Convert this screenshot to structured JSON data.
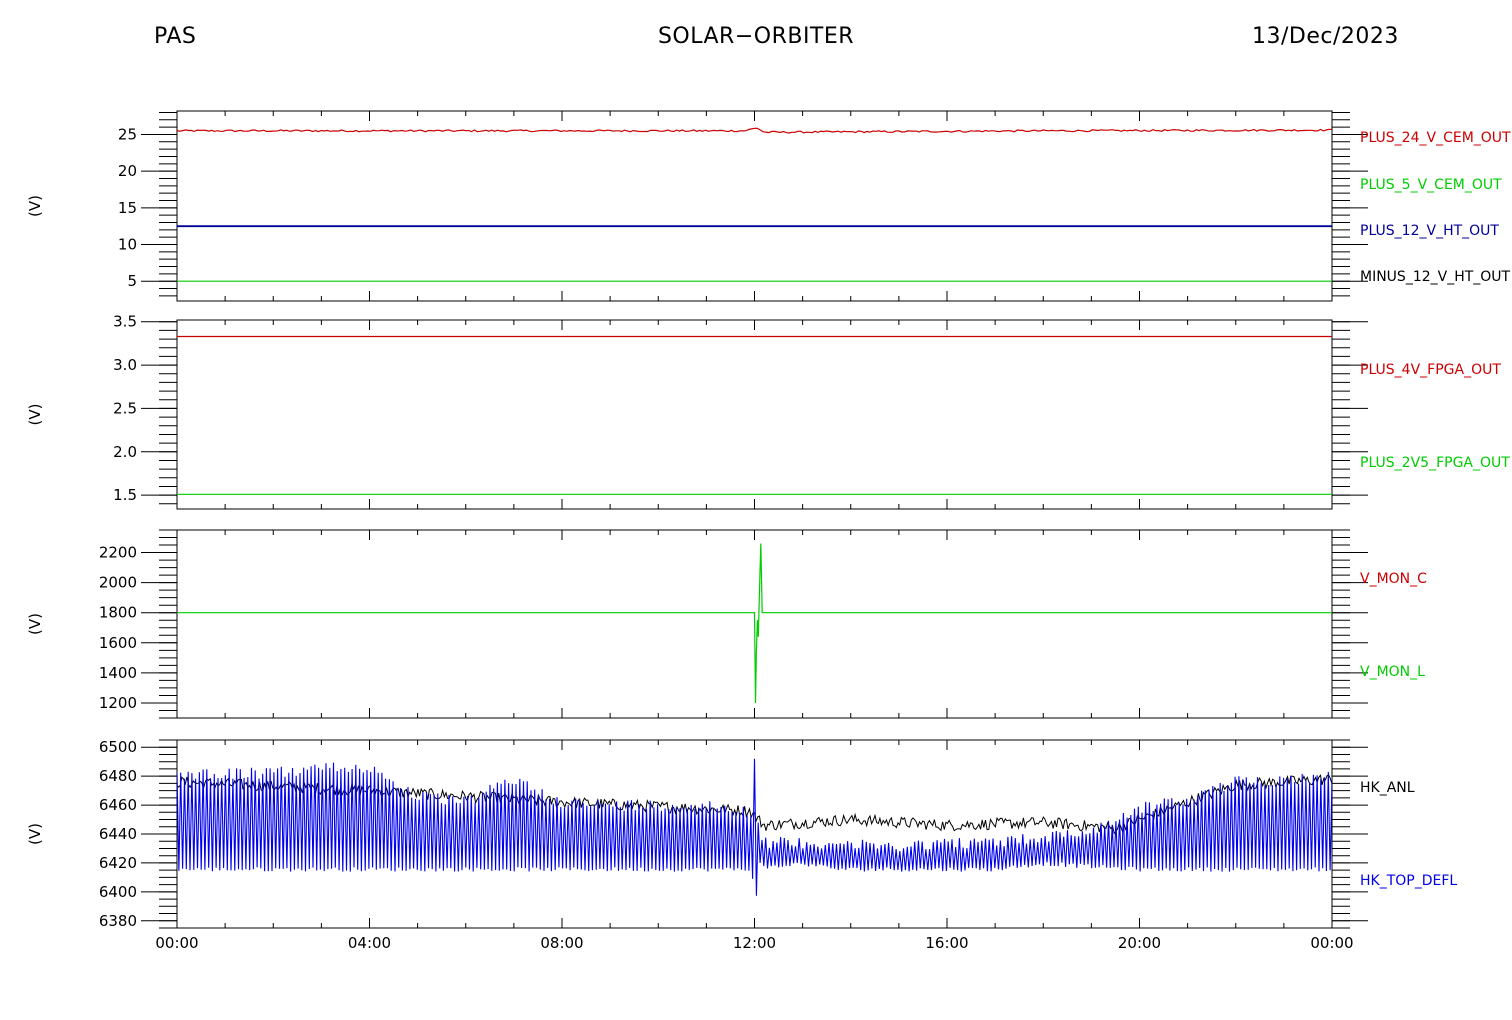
{
  "header": {
    "left": "PAS",
    "center": "SOLAR−ORBITER",
    "right": "13/Dec/2023"
  },
  "chart_data": [
    {
      "type": "line",
      "ylabel": "(V)",
      "ylim": [
        2.3,
        28.2
      ],
      "yticks": [
        "5",
        "10",
        "15",
        "20",
        "25"
      ],
      "ytick_values": [
        5,
        10,
        15,
        20,
        25
      ],
      "yminor": 1,
      "x_range_hours": [
        0,
        24
      ],
      "series": [
        {
          "name": "PLUS_24_V_CEM_OUT",
          "color": "#cc0000",
          "x_hours": [
            0,
            6,
            11.8,
            12.05,
            12.2,
            18,
            24
          ],
          "values": [
            25.5,
            25.5,
            25.5,
            25.9,
            25.3,
            25.5,
            25.6
          ]
        },
        {
          "name": "PLUS_5_V_CEM_OUT",
          "color": "#00cc00",
          "x_hours": [
            0,
            24
          ],
          "values": [
            5.0,
            5.0
          ]
        },
        {
          "name": "PLUS_12_V_HT_OUT",
          "color": "#000099",
          "x_hours": [
            0,
            24
          ],
          "values": [
            12.5,
            12.5
          ]
        },
        {
          "name": "MINUS_12_V_HT_OUT",
          "color": "#000000",
          "x_hours": [],
          "values": []
        }
      ],
      "legend_labels": [
        "PLUS_24_V_CEM_OUT",
        "PLUS_5_V_CEM_OUT",
        "PLUS_12_V_HT_OUT",
        "MINUS_12_V_HT_OUT"
      ]
    },
    {
      "type": "line",
      "ylabel": "(V)",
      "ylim": [
        1.34,
        3.52
      ],
      "yticks": [
        "1.5",
        "2.0",
        "2.5",
        "3.0",
        "3.5"
      ],
      "ytick_values": [
        1.5,
        2.0,
        2.5,
        3.0,
        3.5
      ],
      "yminor": 0.1,
      "x_range_hours": [
        0,
        24
      ],
      "series": [
        {
          "name": "PLUS_4V_FPGA_OUT",
          "color": "#cc0000",
          "x_hours": [
            0,
            24
          ],
          "values": [
            3.33,
            3.33
          ]
        },
        {
          "name": "PLUS_2V5_FPGA_OUT",
          "color": "#00cc00",
          "x_hours": [
            0,
            24
          ],
          "values": [
            1.51,
            1.51
          ]
        }
      ],
      "legend_labels": [
        "PLUS_4V_FPGA_OUT",
        "PLUS_2V5_FPGA_OUT"
      ]
    },
    {
      "type": "line",
      "ylabel": "(V)",
      "ylim": [
        1100,
        2350
      ],
      "yticks": [
        "1200",
        "1400",
        "1600",
        "1800",
        "2000",
        "2200"
      ],
      "ytick_values": [
        1200,
        1400,
        1600,
        1800,
        2000,
        2200
      ],
      "yminor": 50,
      "x_range_hours": [
        0,
        24
      ],
      "series": [
        {
          "name": "V_MON_C",
          "color": "#cc0000",
          "x_hours": [],
          "values": []
        },
        {
          "name": "V_MON_L",
          "color": "#00cc00",
          "x_hours": [
            0,
            12.0,
            12.02,
            12.04,
            12.06,
            12.08,
            12.1,
            12.13,
            12.16,
            12.2,
            24
          ],
          "values": [
            1800,
            1800,
            1200,
            1550,
            1750,
            1640,
            1900,
            2260,
            1800,
            1800,
            1800
          ]
        }
      ],
      "legend_labels": [
        "V_MON_C",
        "V_MON_L"
      ]
    },
    {
      "type": "line",
      "ylabel": "(V)",
      "ylim": [
        6375,
        6505
      ],
      "yticks": [
        "6380",
        "6400",
        "6420",
        "6440",
        "6460",
        "6480",
        "6500"
      ],
      "ytick_values": [
        6380,
        6400,
        6420,
        6440,
        6460,
        6480,
        6500
      ],
      "yminor": 5,
      "x_range_hours": [
        0,
        24
      ],
      "series": [
        {
          "name": "HK_ANL",
          "color": "#000000",
          "x_hours": [
            0,
            4,
            8,
            11.9,
            12.2,
            14,
            16,
            18,
            19.5,
            22,
            24
          ],
          "values": [
            6476,
            6470,
            6462,
            6456,
            6446,
            6450,
            6446,
            6448,
            6444,
            6474,
            6478
          ],
          "band": [
            6444,
            6456
          ]
        },
        {
          "name": "HK_TOP_DEFL",
          "color": "#0000ee",
          "x_hours": [
            0,
            1,
            2,
            3,
            4,
            5,
            6,
            7,
            8,
            9,
            10,
            11,
            11.95,
            12.0,
            12.1,
            12.2,
            13,
            13.8,
            14.2,
            15,
            16,
            17,
            18,
            19,
            20,
            21,
            22,
            23,
            24
          ],
          "upper": [
            6486,
            6486,
            6486,
            6490,
            6490,
            6470,
            6466,
            6482,
            6466,
            6464,
            6464,
            6464,
            6460,
            6498,
            6440,
            6438,
            6438,
            6438,
            6436,
            6436,
            6438,
            6438,
            6442,
            6446,
            6462,
            6468,
            6480,
            6482,
            6484
          ],
          "lower": [
            6414,
            6414,
            6414,
            6414,
            6414,
            6414,
            6414,
            6414,
            6414,
            6414,
            6414,
            6414,
            6414,
            6384,
            6418,
            6415,
            6418,
            6414,
            6414,
            6414,
            6414,
            6414,
            6418,
            6416,
            6414,
            6414,
            6414,
            6414,
            6414
          ]
        }
      ],
      "legend_labels": [
        "HK_ANL",
        "HK_TOP_DEFL"
      ]
    }
  ],
  "xaxis": {
    "ticks": [
      "00:00",
      "04:00",
      "08:00",
      "12:00",
      "16:00",
      "20:00",
      "00:00"
    ],
    "tick_hours": [
      0,
      4,
      8,
      12,
      16,
      20,
      24
    ],
    "minor_step_hours": 1
  }
}
